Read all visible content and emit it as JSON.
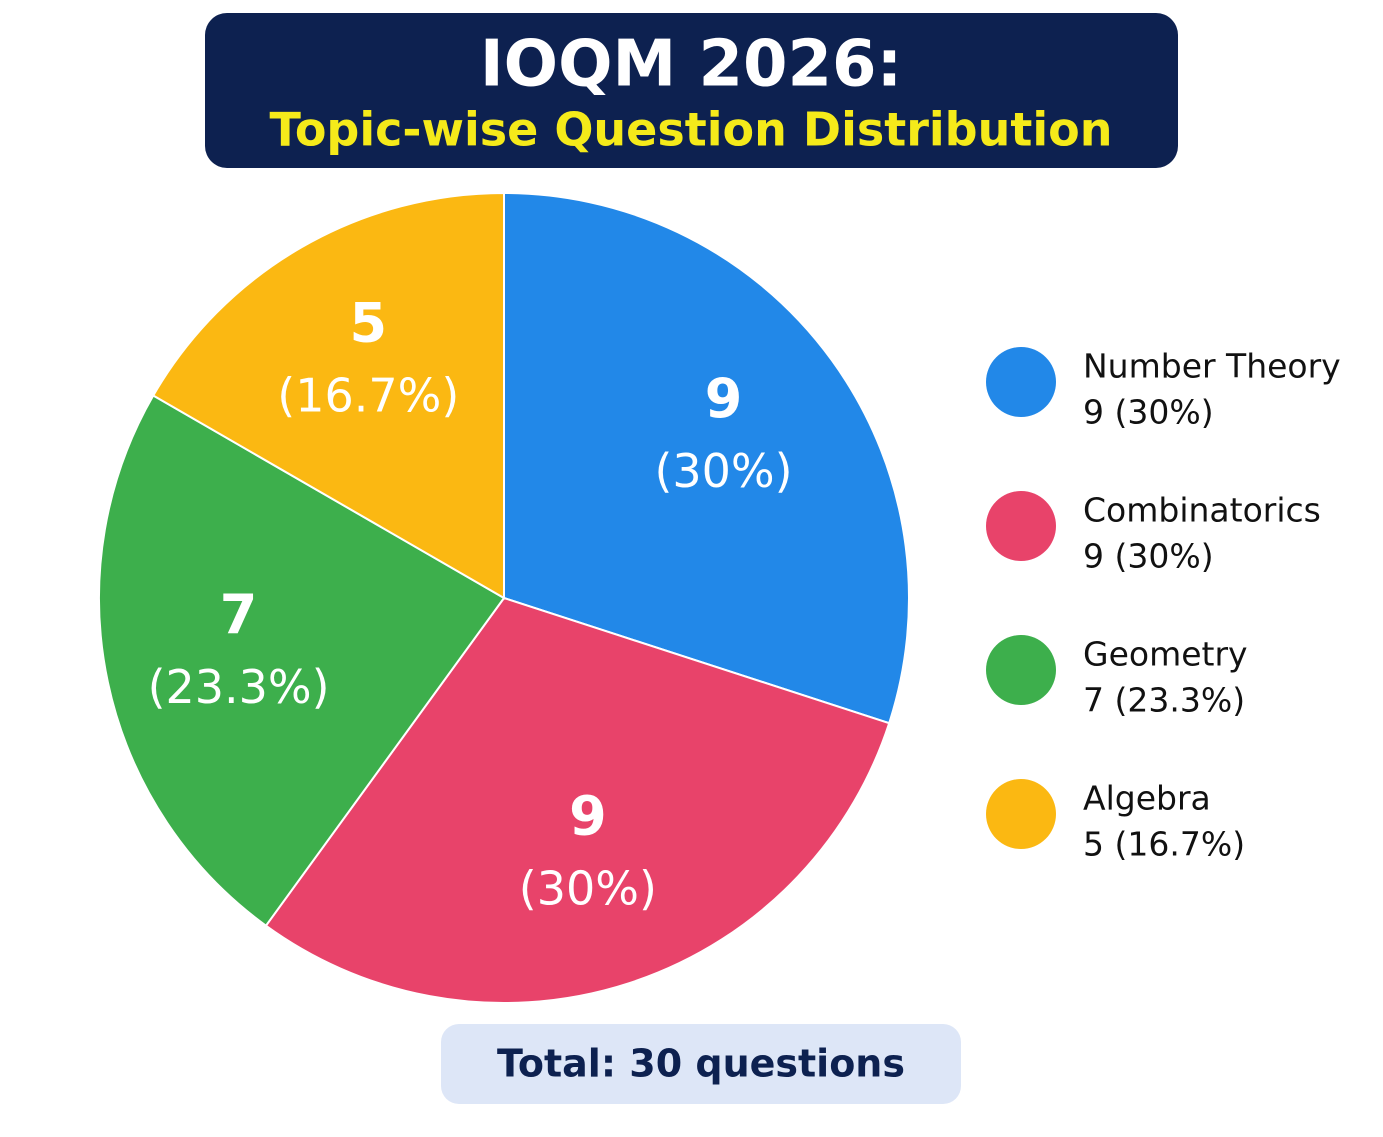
{
  "chart_data": {
    "type": "pie",
    "title": "IOQM 2026:",
    "subtitle": "Topic-wise Question Distribution",
    "categories": [
      "Number Theory",
      "Combinatorics",
      "Geometry",
      "Algebra"
    ],
    "values": [
      9,
      9,
      7,
      5
    ],
    "percent_labels": [
      "(30%)",
      "(30%)",
      "(23.3%)",
      "(16.7%)"
    ],
    "legend_value_labels": [
      "9 (30%)",
      "9 (30%)",
      "7 (23.3%)",
      "5 (16.7%)"
    ],
    "colors": [
      "#2288e8",
      "#e8436a",
      "#3daf4c",
      "#fbb812"
    ],
    "legend": "right",
    "total_label": "Total: 30 questions"
  }
}
